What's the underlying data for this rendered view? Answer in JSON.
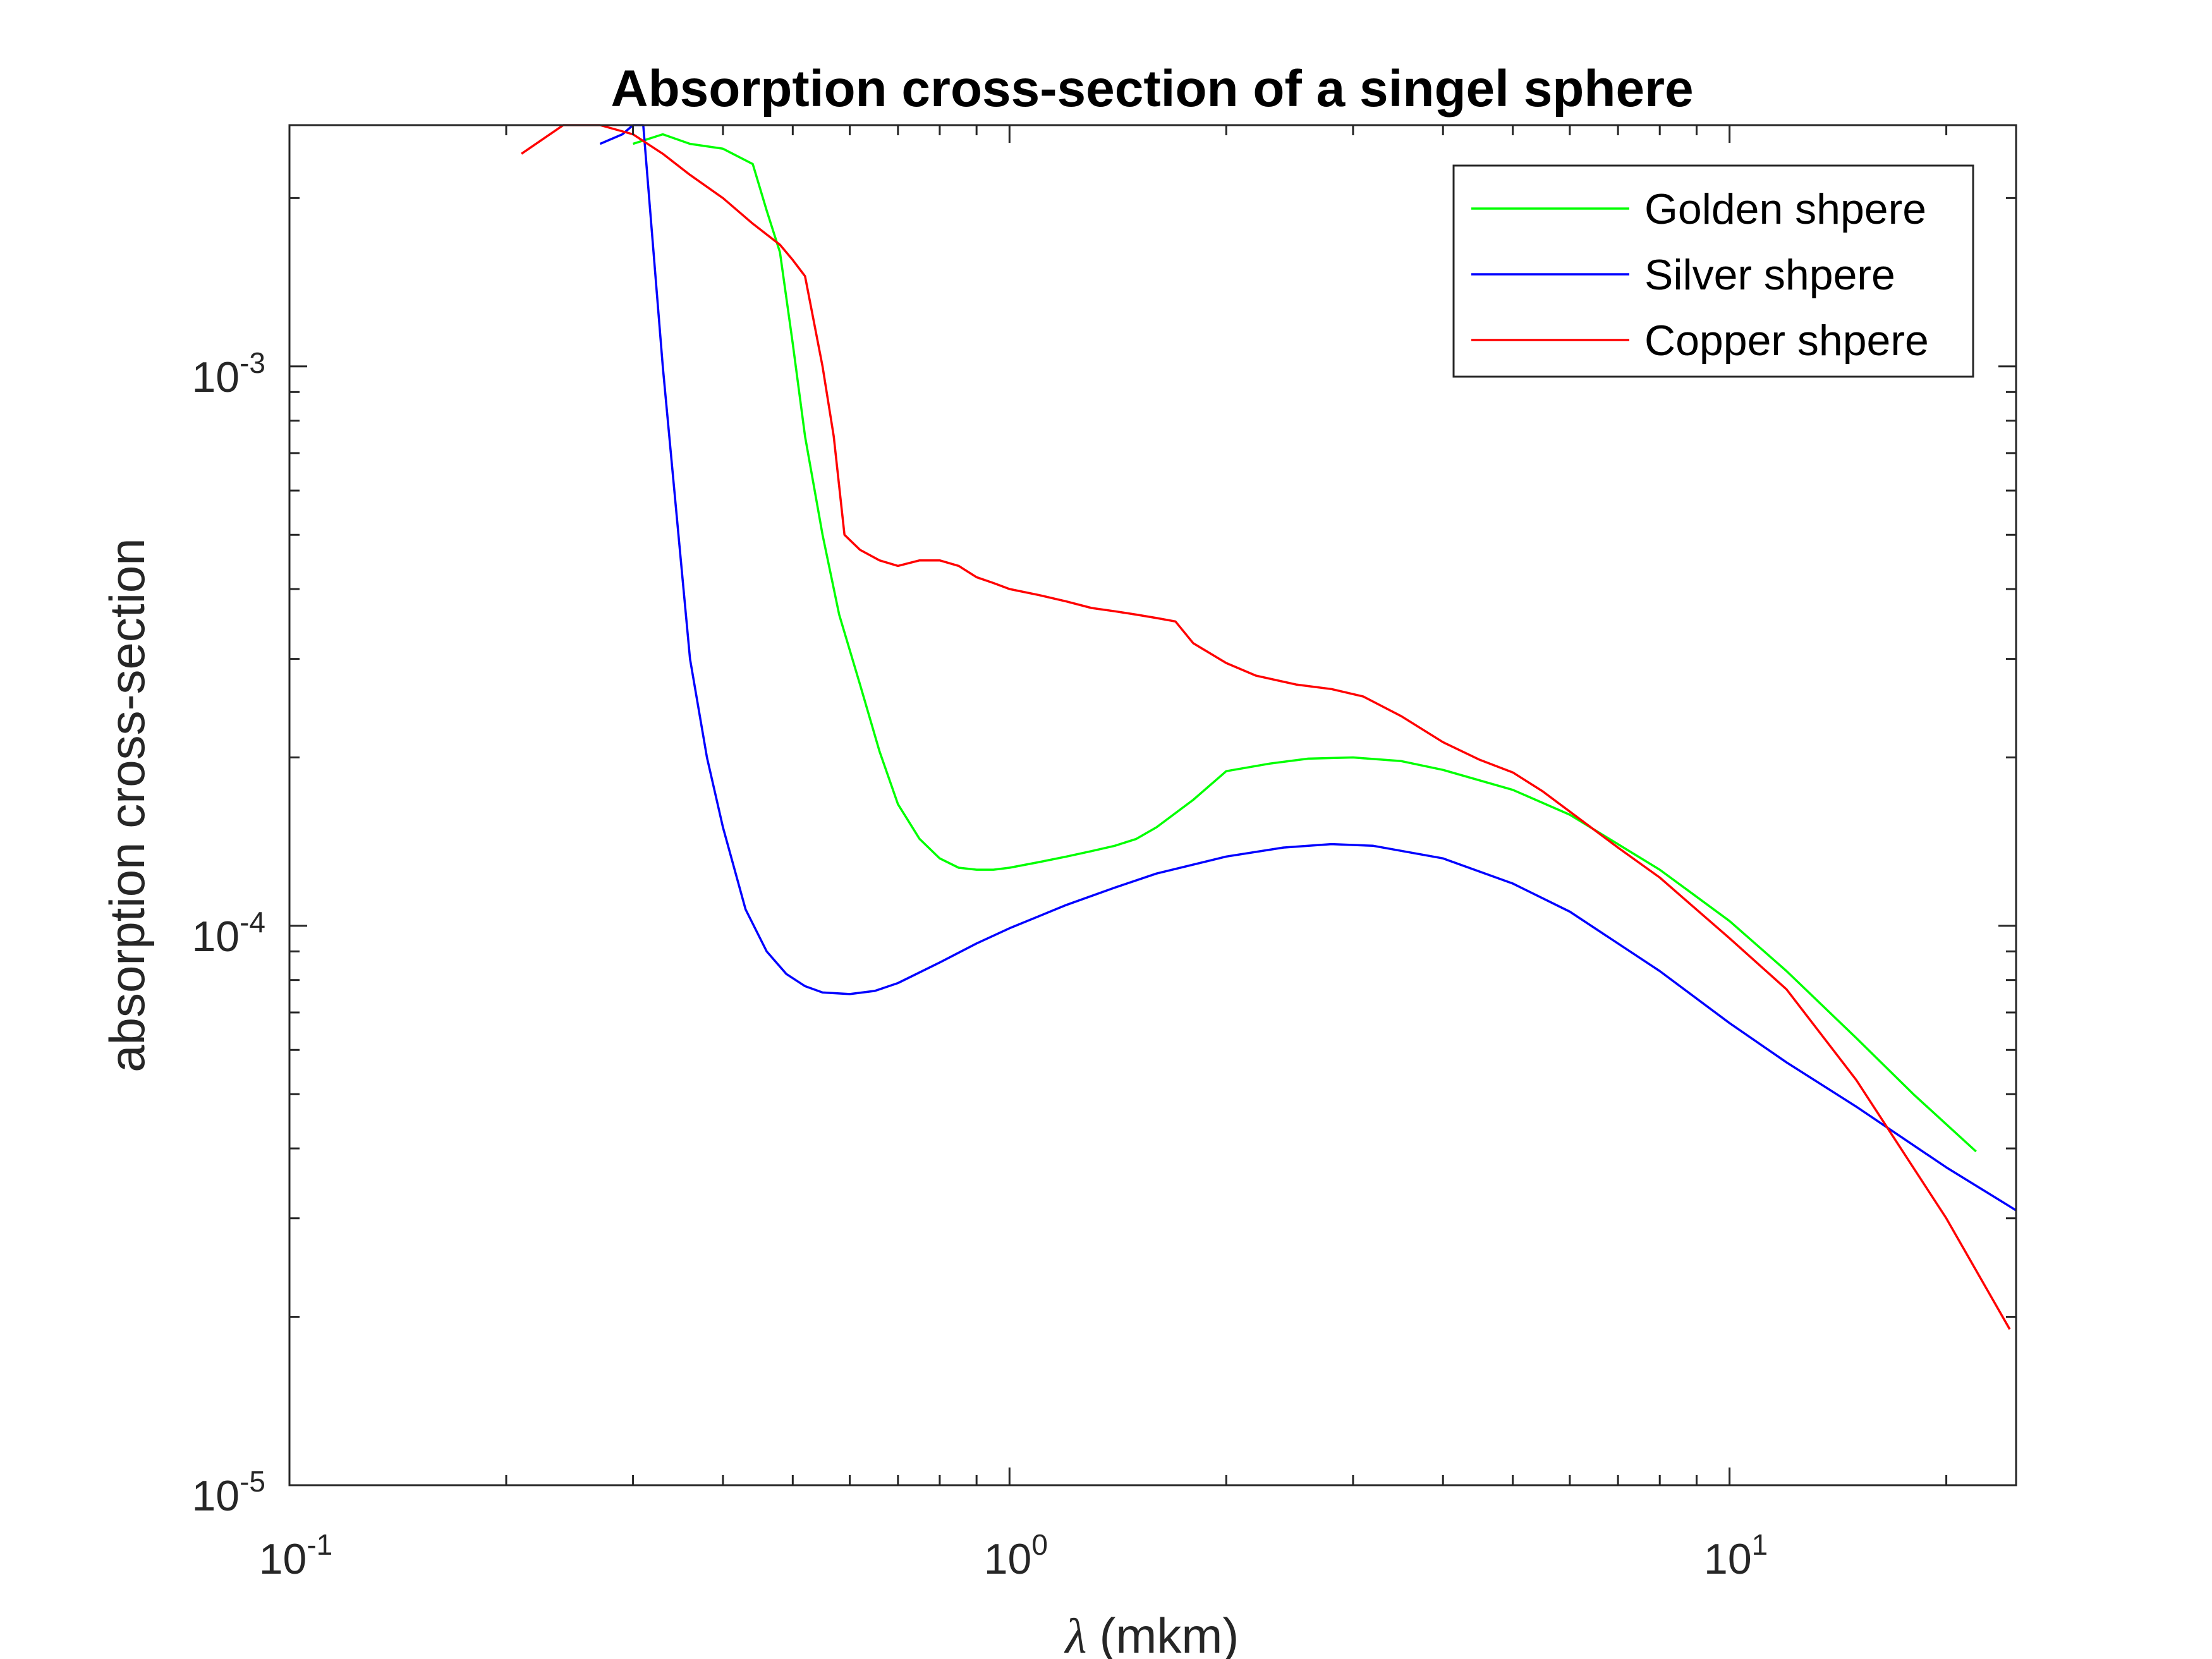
{
  "chart_data": {
    "type": "line",
    "title": "Absorption cross-section of a singel sphere",
    "xlabel_symbol": "λ",
    "xlabel_unit": "(mkm)",
    "ylabel": "absorption cross-section",
    "xscale": "log",
    "yscale": "log",
    "xlim": [
      0.1,
      25
    ],
    "ylim": [
      1e-05,
      0.0027
    ],
    "x_ticks": [
      {
        "base": "10",
        "exp": "-1",
        "value": 0.1
      },
      {
        "base": "10",
        "exp": "0",
        "value": 1
      },
      {
        "base": "10",
        "exp": "1",
        "value": 10
      }
    ],
    "y_ticks": [
      {
        "base": "10",
        "exp": "-5",
        "value": 1e-05
      },
      {
        "base": "10",
        "exp": "-4",
        "value": 0.0001
      },
      {
        "base": "10",
        "exp": "-3",
        "value": 0.001
      }
    ],
    "grid": false,
    "legend_position": "top-right",
    "series": [
      {
        "name": "Golden shpere",
        "color": "#00ff00",
        "x": [
          0.3,
          0.33,
          0.36,
          0.4,
          0.44,
          0.46,
          0.48,
          0.5,
          0.52,
          0.55,
          0.58,
          0.62,
          0.66,
          0.7,
          0.75,
          0.8,
          0.85,
          0.9,
          0.95,
          1.0,
          1.1,
          1.2,
          1.3,
          1.4,
          1.5,
          1.6,
          1.8,
          2.0,
          2.3,
          2.6,
          3.0,
          3.5,
          4.0,
          5.0,
          6.0,
          8.0,
          10.0,
          12.0,
          15.0,
          18.0,
          22.0
        ],
        "y": [
          0.0025,
          0.0026,
          0.0025,
          0.00245,
          0.0023,
          0.0019,
          0.0016,
          0.0011,
          0.00075,
          0.0005,
          0.00036,
          0.00027,
          0.000205,
          0.000165,
          0.000143,
          0.000132,
          0.000127,
          0.000126,
          0.000126,
          0.000127,
          0.00013,
          0.000133,
          0.000136,
          0.000139,
          0.000143,
          0.00015,
          0.000168,
          0.000189,
          0.000195,
          0.000199,
          0.0002,
          0.000197,
          0.00019,
          0.000175,
          0.000158,
          0.000126,
          0.000102,
          8.3e-05,
          6.3e-05,
          5e-05,
          3.95e-05
        ]
      },
      {
        "name": "Silver shpere",
        "color": "#0000ff",
        "x": [
          0.27,
          0.29,
          0.3,
          0.31,
          0.33,
          0.36,
          0.38,
          0.4,
          0.43,
          0.46,
          0.49,
          0.52,
          0.55,
          0.6,
          0.65,
          0.7,
          0.8,
          0.9,
          1.0,
          1.2,
          1.4,
          1.6,
          2.0,
          2.4,
          2.8,
          3.2,
          4.0,
          5.0,
          6.0,
          8.0,
          10.0,
          12.0,
          15.0,
          20.0,
          25.0
        ],
        "y": [
          0.0025,
          0.0026,
          0.0027,
          0.0027,
          0.001,
          0.0003,
          0.0002,
          0.00015,
          0.000107,
          9e-05,
          8.2e-05,
          7.8e-05,
          7.6e-05,
          7.55e-05,
          7.65e-05,
          7.9e-05,
          8.6e-05,
          9.3e-05,
          9.9e-05,
          0.000109,
          0.000117,
          0.000124,
          0.000133,
          0.000138,
          0.00014,
          0.000139,
          0.000132,
          0.000119,
          0.000106,
          8.3e-05,
          6.7e-05,
          5.7e-05,
          4.75e-05,
          3.7e-05,
          3.1e-05
        ]
      },
      {
        "name": "Copper shpere",
        "color": "#ff0000",
        "x": [
          0.21,
          0.24,
          0.27,
          0.3,
          0.33,
          0.36,
          0.4,
          0.44,
          0.48,
          0.5,
          0.52,
          0.55,
          0.57,
          0.59,
          0.62,
          0.66,
          0.7,
          0.75,
          0.8,
          0.85,
          0.9,
          0.95,
          1.0,
          1.1,
          1.2,
          1.3,
          1.4,
          1.5,
          1.6,
          1.7,
          1.8,
          2.0,
          2.2,
          2.5,
          2.8,
          3.1,
          3.5,
          4.0,
          4.5,
          5.0,
          5.5,
          6.0,
          7.0,
          8.0,
          10.0,
          12.0,
          15.0,
          20.0,
          24.5
        ],
        "y": [
          0.0024,
          0.0027,
          0.0027,
          0.0026,
          0.0024,
          0.0022,
          0.002,
          0.0018,
          0.00165,
          0.00155,
          0.00145,
          0.001,
          0.00075,
          0.0005,
          0.00047,
          0.00045,
          0.00044,
          0.00045,
          0.00045,
          0.00044,
          0.00042,
          0.00041,
          0.0004,
          0.00039,
          0.00038,
          0.00037,
          0.000365,
          0.00036,
          0.000355,
          0.00035,
          0.00032,
          0.000295,
          0.00028,
          0.00027,
          0.000265,
          0.000257,
          0.000237,
          0.000213,
          0.000198,
          0.000188,
          0.000174,
          0.00016,
          0.000138,
          0.000122,
          9.5e-05,
          7.7e-05,
          5.3e-05,
          3e-05,
          1.9e-05
        ]
      }
    ]
  }
}
